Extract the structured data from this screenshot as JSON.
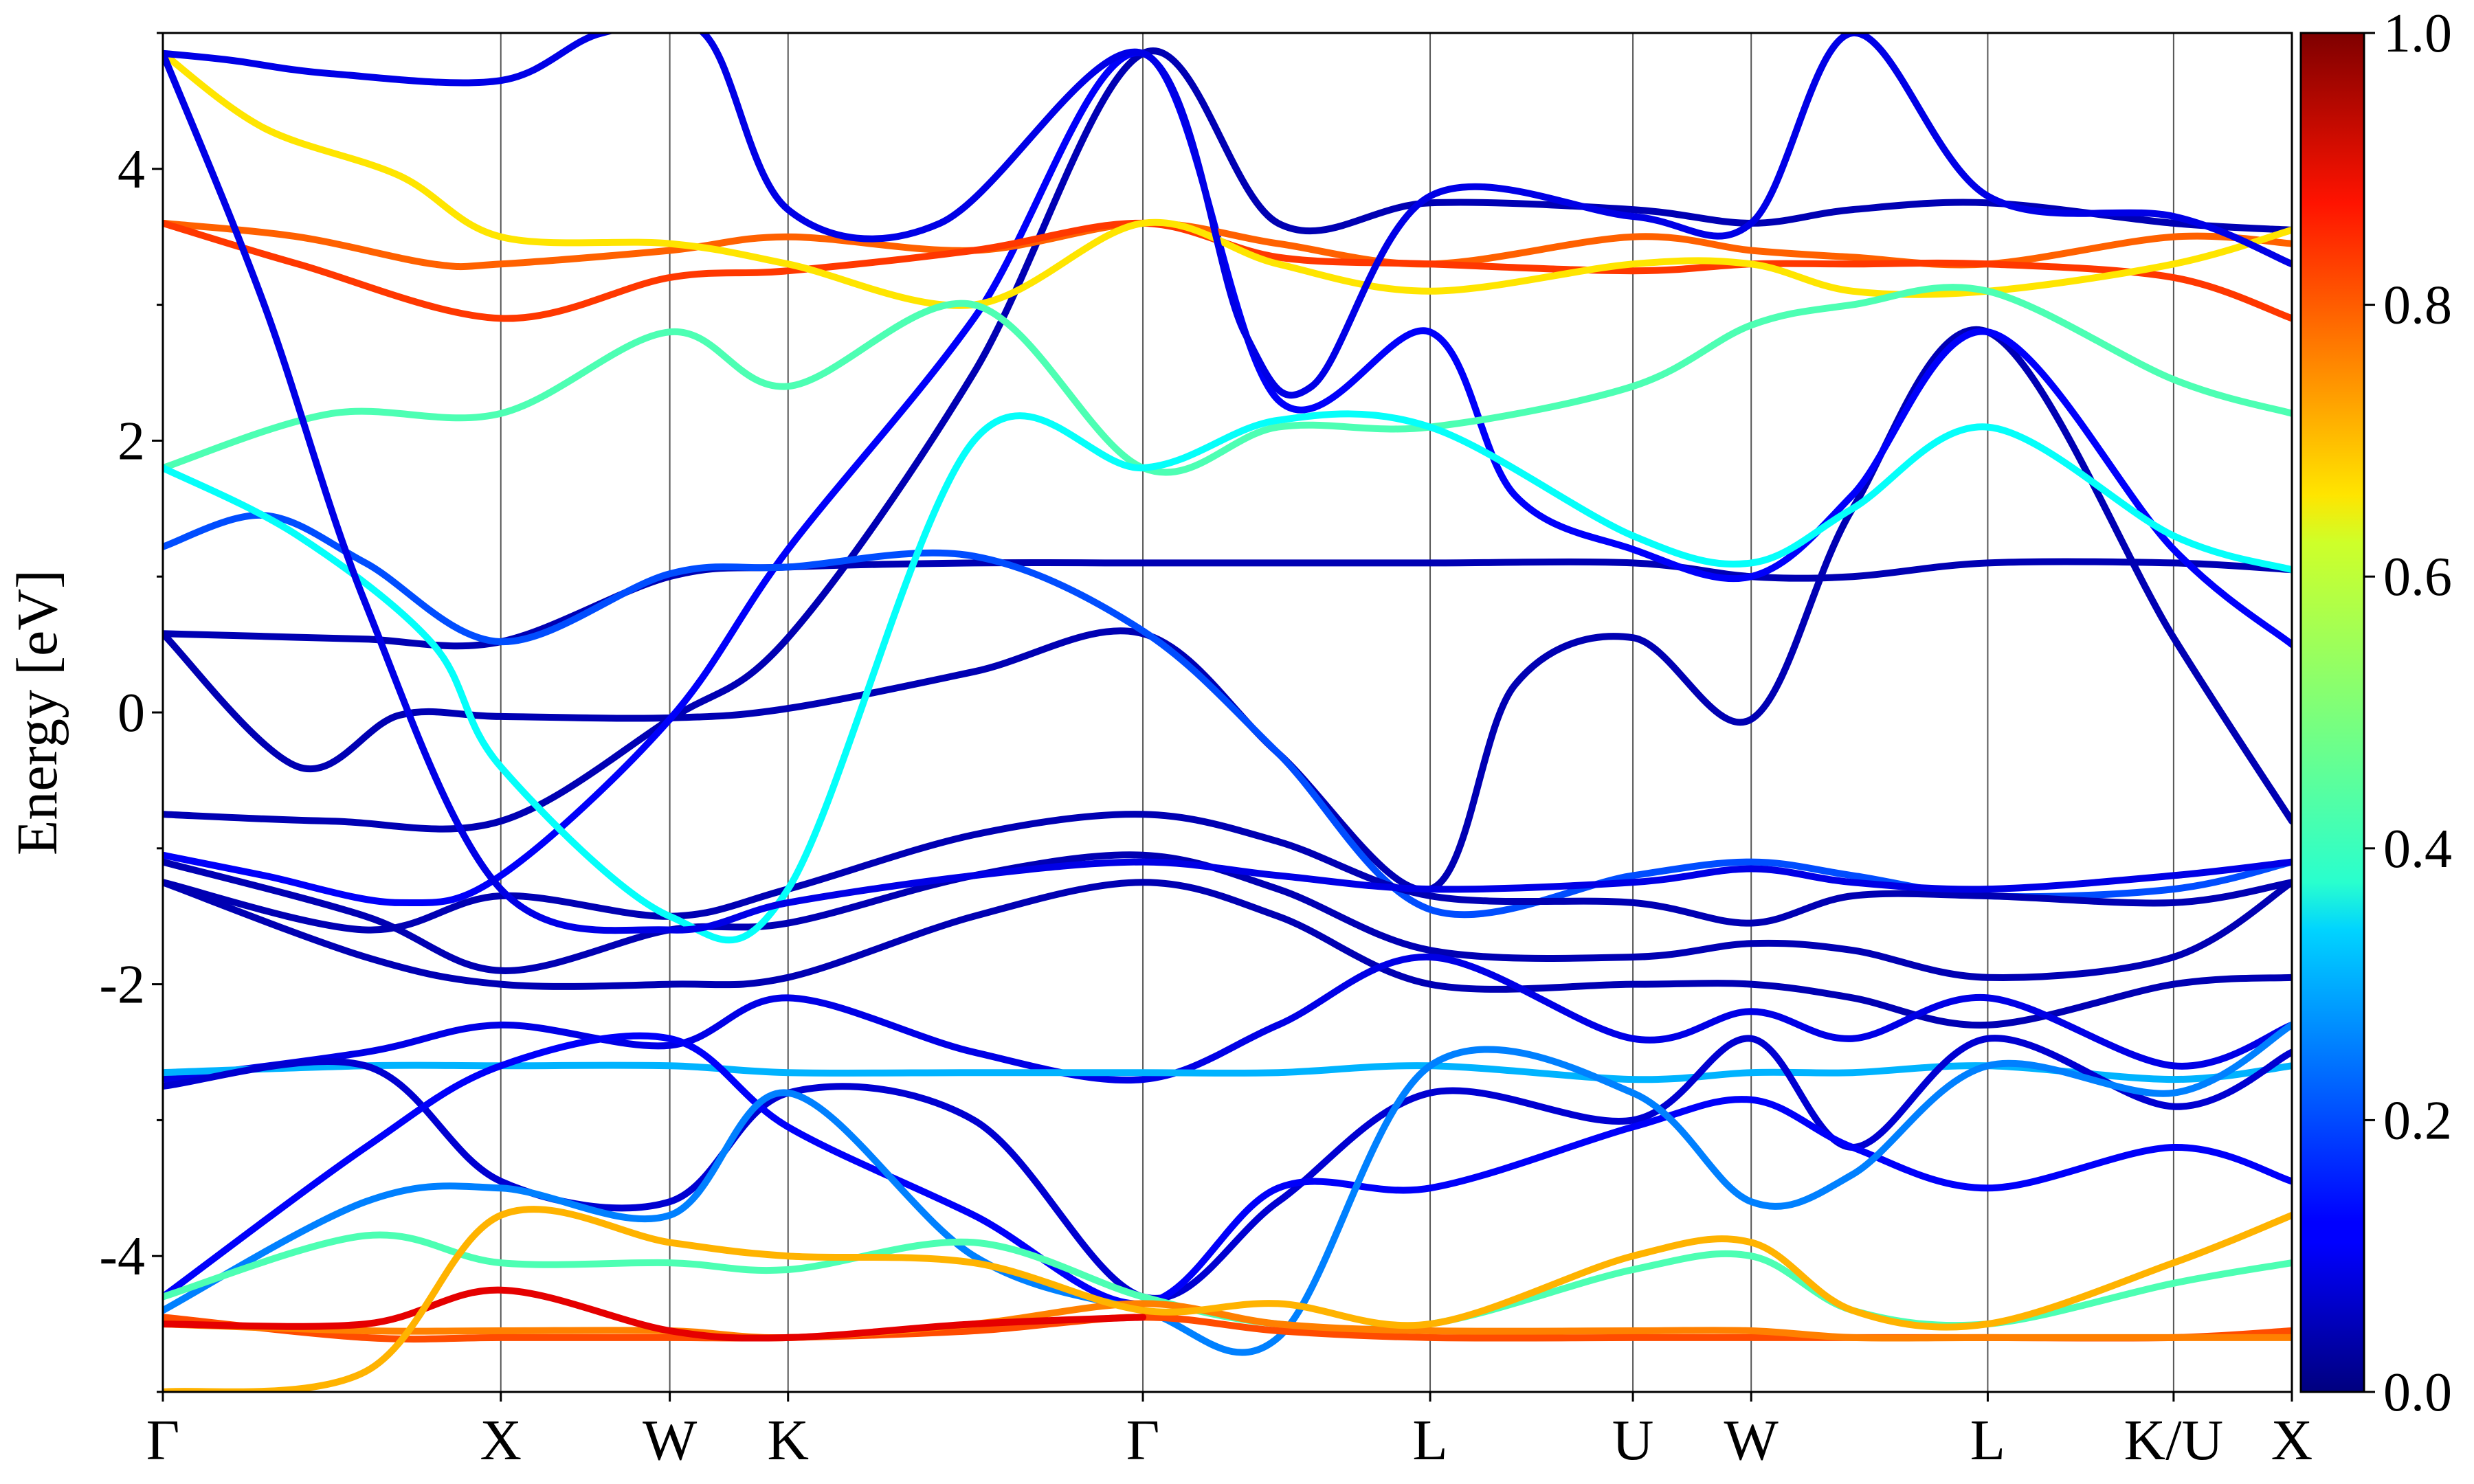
{
  "chart_data": {
    "type": "line",
    "ylabel": "Energy [eV]",
    "ylim": [
      -5,
      5
    ],
    "yticks": [
      -4,
      -2,
      0,
      2,
      4
    ],
    "ytick_labels": [
      "-4",
      "-2",
      "0",
      "2",
      "4"
    ],
    "xlim": [
      0,
      6.3
    ],
    "kpoint_labels": [
      "Γ",
      "X",
      "W",
      "K",
      "Γ",
      "L",
      "U",
      "W",
      "L",
      "K/U",
      "X"
    ],
    "kpoint_positions": [
      0,
      1.0,
      1.5,
      1.85,
      2.9,
      3.75,
      4.35,
      4.7,
      5.4,
      5.95,
      6.3
    ],
    "grid": "vertical lines at high-symmetry points",
    "colorbar": {
      "min": 0.0,
      "max": 1.0,
      "ticks": [
        0.0,
        0.2,
        0.4,
        0.6,
        0.8,
        1.0
      ],
      "tick_labels": [
        "0.0",
        "0.2",
        "0.4",
        "0.6",
        "0.8",
        "1.0"
      ],
      "colormap": "jet"
    },
    "series": [
      {
        "weight": 0.05,
        "x": [
          0,
          0.3,
          0.6,
          1.0,
          1.5,
          1.85,
          2.4,
          2.9,
          3.3,
          3.75,
          4.35,
          4.7,
          5.0,
          5.4,
          5.95,
          6.3
        ],
        "y": [
          0.58,
          0.56,
          0.54,
          0.52,
          1.0,
          1.07,
          1.1,
          1.1,
          1.1,
          1.1,
          1.1,
          1.0,
          1.0,
          1.1,
          1.1,
          1.05
        ]
      },
      {
        "weight": 0.05,
        "x": [
          0,
          0.4,
          0.7,
          1.0,
          1.5,
          1.85,
          2.4,
          2.9,
          3.3,
          3.75,
          4.0,
          4.35,
          4.7,
          5.0,
          5.4,
          5.95,
          6.3
        ],
        "y": [
          0.58,
          -0.4,
          -0.02,
          -0.03,
          -0.04,
          0.03,
          0.3,
          0.58,
          -0.3,
          -1.3,
          0.2,
          0.55,
          -0.05,
          1.5,
          2.8,
          0.55,
          -0.8
        ]
      },
      {
        "weight": 0.05,
        "x": [
          0,
          0.5,
          1.0,
          1.5,
          1.85,
          2.4,
          2.9,
          3.3,
          3.75,
          4.35,
          4.7,
          5.0,
          5.4,
          5.95,
          6.3
        ],
        "y": [
          -0.75,
          -0.8,
          -0.8,
          -0.05,
          0.55,
          2.5,
          4.85,
          3.6,
          3.75,
          3.7,
          3.6,
          3.7,
          3.75,
          3.6,
          3.55
        ]
      },
      {
        "weight": 0.12,
        "x": [
          0,
          0.3,
          0.7,
          1.0,
          1.5,
          1.85,
          2.4,
          2.9,
          3.3,
          3.75,
          4.0,
          4.35,
          4.7,
          5.0,
          5.4,
          5.95,
          6.3
        ],
        "y": [
          -1.05,
          -1.2,
          -1.4,
          -1.2,
          -0.05,
          1.2,
          2.9,
          4.85,
          2.3,
          2.8,
          1.6,
          1.2,
          1.0,
          1.6,
          2.8,
          1.2,
          0.5
        ]
      },
      {
        "weight": 0.2,
        "x": [
          0,
          0.3,
          0.6,
          1.0,
          1.5,
          1.85,
          2.4,
          2.9,
          3.3,
          3.75,
          4.35,
          4.7,
          5.0,
          5.4,
          5.95,
          6.3
        ],
        "y": [
          1.22,
          1.45,
          1.1,
          0.52,
          1.02,
          1.07,
          1.15,
          0.6,
          -0.3,
          -1.45,
          -1.2,
          -1.1,
          -1.2,
          -1.35,
          -1.3,
          -1.1
        ]
      },
      {
        "weight": 0.05,
        "x": [
          0,
          0.6,
          1.0,
          1.5,
          1.85,
          2.4,
          2.9,
          3.3,
          3.75,
          4.35,
          4.7,
          5.0,
          5.4,
          5.95,
          6.3
        ],
        "y": [
          -1.25,
          -1.6,
          -1.35,
          -1.5,
          -1.3,
          -0.9,
          -0.75,
          -0.95,
          -1.35,
          -1.4,
          -1.55,
          -1.35,
          -1.35,
          -1.4,
          -1.25
        ]
      },
      {
        "weight": 0.05,
        "x": [
          0,
          0.6,
          1.0,
          1.5,
          1.85,
          2.4,
          2.9,
          3.3,
          3.75,
          4.35,
          4.7,
          5.0,
          5.4,
          5.95,
          6.3
        ],
        "y": [
          -1.1,
          -1.5,
          -1.9,
          -1.6,
          -1.55,
          -1.2,
          -1.05,
          -1.3,
          -1.75,
          -1.8,
          -1.7,
          -1.75,
          -1.95,
          -1.8,
          -1.25
        ]
      },
      {
        "weight": 0.05,
        "x": [
          0,
          0.6,
          1.0,
          1.5,
          1.85,
          2.4,
          2.9,
          3.3,
          3.75,
          4.35,
          4.7,
          5.0,
          5.4,
          5.95,
          6.3
        ],
        "y": [
          -1.25,
          -1.8,
          -2.0,
          -2.0,
          -1.95,
          -1.5,
          -1.25,
          -1.5,
          -2.0,
          -2.0,
          -2.0,
          -2.1,
          -2.3,
          -2.0,
          -1.95
        ]
      },
      {
        "weight": 0.1,
        "x": [
          0,
          0.6,
          1.0,
          1.5,
          1.85,
          2.4,
          2.9,
          3.3,
          3.75,
          4.35,
          4.7,
          5.0,
          5.4,
          5.95,
          6.3
        ],
        "y": [
          -2.7,
          -2.5,
          -2.3,
          -2.45,
          -2.1,
          -2.5,
          -2.7,
          -2.3,
          -1.8,
          -2.4,
          -2.2,
          -2.4,
          -2.1,
          -2.6,
          -2.3
        ]
      },
      {
        "weight": 0.3,
        "x": [
          0,
          0.6,
          1.0,
          1.5,
          1.85,
          2.4,
          2.9,
          3.3,
          3.75,
          4.35,
          4.7,
          5.0,
          5.4,
          5.95,
          6.3
        ],
        "y": [
          -2.65,
          -2.6,
          -2.6,
          -2.6,
          -2.65,
          -2.65,
          -2.65,
          -2.65,
          -2.6,
          -2.7,
          -2.65,
          -2.65,
          -2.6,
          -2.7,
          -2.6
        ]
      },
      {
        "weight": 0.08,
        "x": [
          0,
          0.6,
          1.0,
          1.5,
          1.85,
          2.4,
          2.9,
          3.3,
          3.75,
          4.35,
          4.7,
          5.0,
          5.4,
          5.95,
          6.3
        ],
        "y": [
          -2.75,
          -2.6,
          -3.45,
          -3.6,
          -2.8,
          -3.0,
          -4.3,
          -3.6,
          -2.8,
          -3.0,
          -2.4,
          -3.2,
          -2.4,
          -2.9,
          -2.5
        ]
      },
      {
        "weight": 0.12,
        "x": [
          0,
          0.6,
          1.0,
          1.5,
          1.85,
          2.4,
          2.9,
          3.3,
          3.75,
          4.35,
          4.7,
          5.0,
          5.4,
          5.95,
          6.3
        ],
        "y": [
          -4.3,
          -3.2,
          -2.6,
          -2.4,
          -3.05,
          -3.7,
          -4.35,
          -3.5,
          -3.5,
          -3.05,
          -2.85,
          -3.2,
          -3.5,
          -3.2,
          -3.45
        ]
      },
      {
        "weight": 0.25,
        "x": [
          0,
          0.6,
          1.0,
          1.5,
          1.85,
          2.4,
          2.9,
          3.3,
          3.75,
          4.35,
          4.7,
          5.0,
          5.4,
          5.95,
          6.3
        ],
        "y": [
          -4.4,
          -3.6,
          -3.5,
          -3.7,
          -2.8,
          -4.0,
          -4.4,
          -4.6,
          -2.6,
          -2.8,
          -3.6,
          -3.4,
          -2.6,
          -2.8,
          -2.3
        ]
      },
      {
        "weight": 0.45,
        "x": [
          0,
          0.6,
          1.0,
          1.5,
          1.85,
          2.4,
          2.9,
          3.3,
          3.75,
          4.35,
          4.7,
          5.0,
          5.4,
          5.95,
          6.3
        ],
        "y": [
          -4.3,
          -3.85,
          -4.05,
          -4.05,
          -4.1,
          -3.9,
          -4.3,
          -4.5,
          -4.5,
          -4.1,
          -4.0,
          -4.4,
          -4.5,
          -4.2,
          -4.05
        ]
      },
      {
        "weight": 0.8,
        "x": [
          0,
          0.6,
          1.0,
          1.5,
          1.85,
          2.4,
          2.9,
          3.3,
          3.75,
          4.35,
          4.7,
          5.0,
          5.4,
          5.95,
          6.3
        ],
        "y": [
          -4.45,
          -4.6,
          -4.6,
          -4.6,
          -4.6,
          -4.55,
          -4.45,
          -4.55,
          -4.6,
          -4.6,
          -4.6,
          -4.6,
          -4.6,
          -4.6,
          -4.55
        ]
      },
      {
        "weight": 0.75,
        "x": [
          0,
          0.6,
          1.0,
          1.5,
          1.85,
          2.4,
          2.9,
          3.3,
          3.75,
          4.35,
          4.7,
          5.0,
          5.4,
          5.95,
          6.3
        ],
        "y": [
          -4.5,
          -4.55,
          -4.55,
          -4.55,
          -4.6,
          -4.5,
          -4.35,
          -4.5,
          -4.55,
          -4.55,
          -4.55,
          -4.6,
          -4.6,
          -4.6,
          -4.6
        ]
      },
      {
        "weight": 0.9,
        "x": [
          0,
          0.6,
          1.0,
          1.5,
          1.85,
          2.4,
          2.9
        ],
        "y": [
          -4.5,
          -4.5,
          -4.25,
          -4.55,
          -4.6,
          -4.5,
          -4.45
        ]
      },
      {
        "weight": 0.7,
        "x": [
          0,
          0.6,
          1.0,
          1.5,
          1.85,
          2.4,
          2.9,
          3.3,
          3.75,
          4.35,
          4.7,
          5.0,
          5.4,
          5.95,
          6.3
        ],
        "y": [
          -5.0,
          -4.85,
          -3.7,
          -3.9,
          -4.0,
          -4.05,
          -4.4,
          -4.35,
          -4.5,
          -4.0,
          -3.9,
          -4.4,
          -4.5,
          -4.05,
          -3.7
        ]
      },
      {
        "weight": 0.78,
        "x": [
          0,
          0.4,
          0.8,
          1.0,
          1.5,
          1.85,
          2.4,
          2.9,
          3.3,
          3.75,
          4.35,
          4.7,
          5.0,
          5.4,
          5.95,
          6.3
        ],
        "y": [
          3.6,
          3.5,
          3.3,
          3.3,
          3.4,
          3.5,
          3.4,
          3.6,
          3.45,
          3.3,
          3.5,
          3.4,
          3.35,
          3.3,
          3.5,
          3.45
        ]
      },
      {
        "weight": 0.82,
        "x": [
          0,
          0.4,
          1.0,
          1.5,
          1.85,
          2.4,
          2.9,
          3.3,
          3.75,
          4.35,
          4.7,
          5.0,
          5.4,
          5.95,
          6.3
        ],
        "y": [
          3.6,
          3.3,
          2.9,
          3.2,
          3.25,
          3.4,
          3.6,
          3.35,
          3.3,
          3.25,
          3.3,
          3.3,
          3.3,
          3.2,
          2.9
        ]
      },
      {
        "weight": 0.65,
        "x": [
          0,
          0.3,
          0.7,
          1.0,
          1.5,
          1.85,
          2.4,
          2.9,
          3.3,
          3.75,
          4.35,
          4.7,
          5.0,
          5.4,
          5.95,
          6.3
        ],
        "y": [
          4.85,
          4.3,
          3.95,
          3.5,
          3.45,
          3.3,
          3.0,
          3.6,
          3.3,
          3.1,
          3.3,
          3.3,
          3.1,
          3.1,
          3.3,
          3.55
        ]
      },
      {
        "weight": 0.45,
        "x": [
          0,
          0.5,
          1.0,
          1.5,
          1.85,
          2.4,
          2.9,
          3.3,
          3.75,
          4.35,
          4.7,
          5.0,
          5.4,
          5.95,
          6.3
        ],
        "y": [
          1.8,
          2.2,
          2.2,
          2.8,
          2.4,
          3.0,
          1.8,
          2.1,
          2.1,
          2.4,
          2.85,
          3.0,
          3.1,
          2.45,
          2.2
        ]
      },
      {
        "weight": 0.38,
        "x": [
          0,
          0.4,
          0.8,
          1.0,
          1.5,
          1.85,
          2.4,
          2.9,
          3.3,
          3.75,
          4.35,
          4.7,
          5.0,
          5.4,
          5.95,
          6.3
        ],
        "y": [
          1.8,
          1.3,
          0.5,
          -0.4,
          -1.5,
          -1.3,
          2.0,
          1.8,
          2.15,
          2.1,
          1.3,
          1.1,
          1.5,
          2.1,
          1.3,
          1.05
        ]
      },
      {
        "weight": 0.1,
        "x": [
          0,
          0.3,
          0.6,
          1.0,
          1.5,
          1.85,
          2.4,
          2.9,
          3.3,
          3.75,
          4.35,
          4.7,
          5.0,
          5.4,
          5.95,
          6.3
        ],
        "y": [
          4.85,
          3.0,
          0.8,
          -1.3,
          -1.6,
          -1.4,
          -1.2,
          -1.1,
          -1.2,
          -1.3,
          -1.25,
          -1.15,
          -1.25,
          -1.3,
          -1.2,
          -1.1
        ]
      },
      {
        "weight": 0.1,
        "x": [
          0,
          0.2,
          0.5,
          1.0,
          1.3,
          1.6,
          1.85,
          2.3,
          2.9,
          3.2,
          3.4,
          3.75,
          4.35,
          4.7,
          5.0,
          5.4,
          5.95,
          6.3
        ],
        "y": [
          4.85,
          4.8,
          4.7,
          4.65,
          5.0,
          5.0,
          3.7,
          3.6,
          4.85,
          2.8,
          2.4,
          3.8,
          3.65,
          3.6,
          5.0,
          3.8,
          3.65,
          3.3
        ]
      }
    ]
  }
}
